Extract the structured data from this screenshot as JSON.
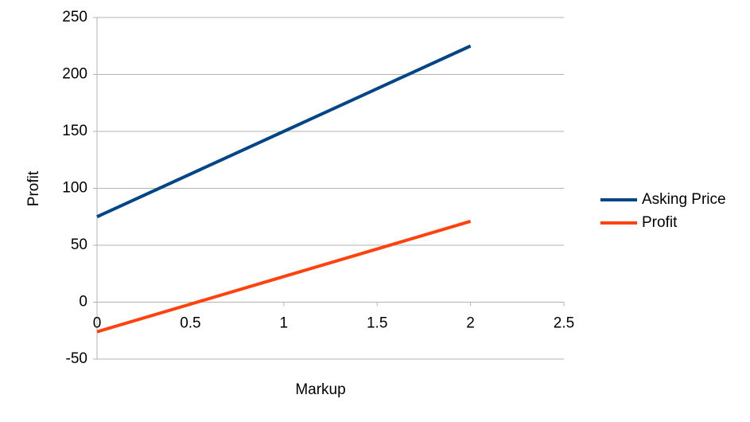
{
  "chart_data": {
    "type": "line",
    "x_label": "Markup",
    "y_label": "Profit",
    "x": [
      0,
      2
    ],
    "series": [
      {
        "name": "Asking Price",
        "color": "#004586",
        "values": [
          75,
          225
        ]
      },
      {
        "name": "Profit",
        "color": "#ff420e",
        "values": [
          -26,
          71
        ]
      }
    ],
    "xlim": [
      0,
      2.5
    ],
    "xticks": [
      0,
      0.5,
      1,
      1.5,
      2,
      2.5
    ],
    "ylim": [
      -50,
      250
    ],
    "yticks": [
      -50,
      0,
      50,
      100,
      150,
      200,
      250
    ],
    "grid": true,
    "legend": "right"
  }
}
